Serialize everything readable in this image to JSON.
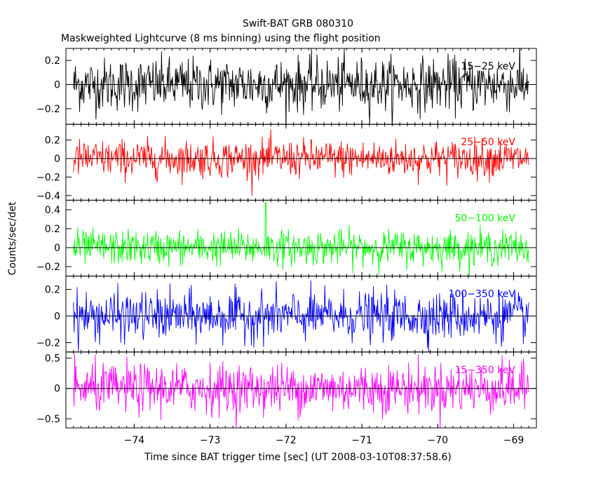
{
  "chart_data": {
    "type": "line",
    "title": "Swift-BAT GRB 080310",
    "subtitle": "Maskweighted Lightcurve (8 ms binning) using the flight position",
    "xlabel": "Time since BAT trigger time [sec] (UT 2008-03-10T08:37:58.6)",
    "ylabel": "Counts/sec/det",
    "xlim": [
      -74.9,
      -68.7
    ],
    "x_ticks": [
      -74,
      -73,
      -72,
      -71,
      -70,
      -69
    ],
    "x_tick_labels": [
      "−74",
      "−73",
      "−72",
      "−71",
      "−70",
      "−69"
    ],
    "x_range_data": [
      -74.8,
      -68.8
    ],
    "bin_width_sec": 0.008,
    "grid": false,
    "panels": [
      {
        "name": "15-25 keV",
        "label": "15−25 keV",
        "color": "#000000",
        "ylim": [
          -0.33,
          0.3
        ],
        "y_ticks": [
          -0.2,
          0,
          0.2
        ],
        "y_tick_labels": [
          "−0.2",
          "0",
          "0.2"
        ],
        "noise_sigma": 0.11,
        "spikes": []
      },
      {
        "name": "25-50 keV",
        "label": "25−50 keV",
        "color": "#ff0000",
        "ylim": [
          -0.45,
          0.37
        ],
        "y_ticks": [
          -0.4,
          -0.2,
          0,
          0.2
        ],
        "y_tick_labels": [
          "−0.4",
          "−0.2",
          "0",
          "0.2"
        ],
        "noise_sigma": 0.1,
        "spikes": []
      },
      {
        "name": "50-100 keV",
        "label": "50−100 keV",
        "color": "#00ff00",
        "ylim": [
          -0.3,
          0.5
        ],
        "y_ticks": [
          -0.2,
          0,
          0.2,
          0.4
        ],
        "y_tick_labels": [
          "−0.2",
          "0",
          "0.2",
          "0.4"
        ],
        "noise_sigma": 0.09,
        "spikes": [
          [
            -72.27,
            0.48
          ]
        ]
      },
      {
        "name": "100-350 keV",
        "label": "100−350 keV",
        "color": "#0000ff",
        "ylim": [
          -0.27,
          0.3
        ],
        "y_ticks": [
          -0.2,
          0,
          0.2
        ],
        "y_tick_labels": [
          "−0.2",
          "0",
          "0.2"
        ],
        "noise_sigma": 0.09,
        "spikes": []
      },
      {
        "name": "15-350 keV",
        "label": "15−350 keV",
        "color": "#ff00ff",
        "ylim": [
          -0.65,
          0.6
        ],
        "y_ticks": [
          -0.5,
          0,
          0.5
        ],
        "y_tick_labels": [
          "−0.5",
          "0",
          "0.5"
        ],
        "noise_sigma": 0.2,
        "spikes": []
      }
    ]
  }
}
